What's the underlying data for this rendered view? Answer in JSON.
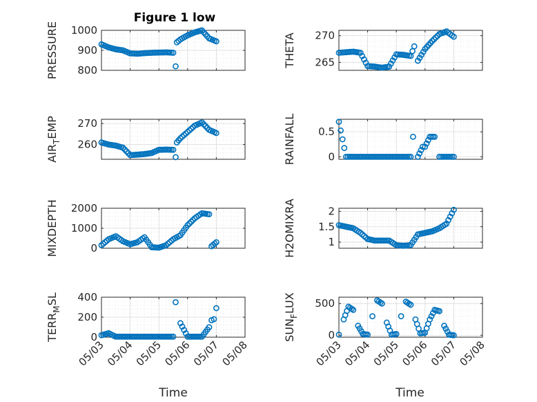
{
  "figure": {
    "title": "Figure 1 low",
    "xlabel": "Time"
  },
  "chart_data": [
    {
      "type": "scatter",
      "title": "Figure 1 low",
      "ylabel": "PRESSURE",
      "xlim": [
        "05/03",
        "05/08"
      ],
      "ylim": [
        800,
        1000
      ],
      "yticks": [
        800,
        900,
        1000
      ],
      "xticks": [],
      "x": [
        "05/03",
        "05/03 06:00",
        "05/03 12:00",
        "05/03 18:00",
        "05/04",
        "05/04 06:00",
        "05/04 12:00",
        "05/04 18:00",
        "05/05",
        "05/05 06:00",
        "05/05 12:00",
        "05/05 14:00",
        "05/05 15:00",
        "05/05 18:00",
        "05/06",
        "05/06 06:00",
        "05/06 12:00",
        "05/06 18:00",
        "05/07"
      ],
      "y": [
        930,
        915,
        905,
        900,
        885,
        883,
        886,
        888,
        889,
        890,
        888,
        820,
        940,
        955,
        975,
        990,
        1000,
        960,
        945
      ],
      "grid": true,
      "minor_grid": true
    },
    {
      "type": "scatter",
      "title": "",
      "ylabel": "THETA",
      "xlim": [
        "05/03",
        "05/08"
      ],
      "ylim": [
        263.5,
        271
      ],
      "yticks": [
        265,
        270
      ],
      "xticks": [],
      "x": [
        "05/03",
        "05/03 06:00",
        "05/03 12:00",
        "05/03 18:00",
        "05/04",
        "05/04 06:00",
        "05/04 12:00",
        "05/04 18:00",
        "05/05",
        "05/05 06:00",
        "05/05 12:00",
        "05/05 15:00",
        "05/05 18:00",
        "05/06",
        "05/06 06:00",
        "05/06 12:00",
        "05/06 18:00",
        "05/07"
      ],
      "y": [
        266.8,
        266.9,
        267.0,
        266.8,
        264.3,
        264.2,
        264.0,
        264.2,
        266.5,
        266.4,
        266.2,
        268.0,
        265.3,
        267.5,
        269.0,
        270.3,
        270.8,
        269.8
      ],
      "grid": true,
      "minor_grid": true
    },
    {
      "type": "scatter",
      "title": "",
      "ylabel": "AIR_TEMP",
      "ylabel_main": "AIR",
      "ylabel_sub": "T",
      "ylabel_rest": "EMP",
      "xlim": [
        "05/03",
        "05/08"
      ],
      "ylim": [
        253,
        272
      ],
      "yticks": [
        260,
        270
      ],
      "xticks": [],
      "x": [
        "05/03",
        "05/03 06:00",
        "05/03 12:00",
        "05/03 18:00",
        "05/04",
        "05/04 06:00",
        "05/04 12:00",
        "05/04 18:00",
        "05/05",
        "05/05 06:00",
        "05/05 12:00",
        "05/05 14:00",
        "05/05 15:00",
        "05/05 18:00",
        "05/06",
        "05/06 06:00",
        "05/06 12:00",
        "05/06 18:00",
        "05/07"
      ],
      "y": [
        261,
        260,
        259.5,
        258.5,
        255,
        255.2,
        255.5,
        256,
        257.5,
        257.6,
        257.5,
        254,
        261,
        263,
        266,
        269,
        270.5,
        267,
        265.5
      ],
      "grid": true,
      "minor_grid": true
    },
    {
      "type": "scatter",
      "title": "",
      "ylabel": "RAINFALL",
      "xlim": [
        "05/03",
        "05/08"
      ],
      "ylim": [
        -0.05,
        0.75
      ],
      "yticks": [
        0,
        0.5
      ],
      "xticks": [],
      "x": [
        "05/03",
        "05/03 06:00",
        "05/03 12:00",
        "05/04",
        "05/04 12:00",
        "05/05",
        "05/05 12:00",
        "05/05 14:00",
        "05/05 18:00",
        "05/05 22:00",
        "05/06",
        "05/06 04:00",
        "05/06 08:00",
        "05/06 12:00",
        "05/06 18:00",
        "05/07"
      ],
      "y": [
        0.7,
        0,
        0,
        0,
        0,
        0,
        0,
        0.4,
        0,
        0.2,
        0.2,
        0.4,
        0.4,
        0,
        0,
        0
      ],
      "grid": true,
      "minor_grid": true
    },
    {
      "type": "scatter",
      "title": "",
      "ylabel": "MIXDEPTH",
      "xlim": [
        "05/03",
        "05/08"
      ],
      "ylim": [
        0,
        2000
      ],
      "yticks": [
        0,
        1000,
        2000
      ],
      "xticks": [],
      "x": [
        "05/03",
        "05/03 06:00",
        "05/03 12:00",
        "05/03 18:00",
        "05/04",
        "05/04 06:00",
        "05/04 12:00",
        "05/04 18:00",
        "05/05",
        "05/05 06:00",
        "05/05 12:00",
        "05/05 18:00",
        "05/06",
        "05/06 06:00",
        "05/06 12:00",
        "05/06 18:00",
        "05/06 20:00",
        "05/07"
      ],
      "y": [
        150,
        450,
        600,
        350,
        200,
        300,
        550,
        50,
        30,
        150,
        450,
        650,
        1150,
        1500,
        1750,
        1700,
        100,
        300
      ],
      "grid": true,
      "minor_grid": true
    },
    {
      "type": "scatter",
      "title": "",
      "ylabel": "H2OMIXRA",
      "xlim": [
        "05/03",
        "05/08"
      ],
      "ylim": [
        0.8,
        2.1
      ],
      "yticks": [
        1,
        1.5,
        2
      ],
      "xticks": [],
      "x": [
        "05/03",
        "05/03 06:00",
        "05/03 12:00",
        "05/03 18:00",
        "05/04",
        "05/04 06:00",
        "05/04 12:00",
        "05/04 18:00",
        "05/05",
        "05/05 06:00",
        "05/05 12:00",
        "05/05 18:00",
        "05/06",
        "05/06 06:00",
        "05/06 12:00",
        "05/06 18:00",
        "05/07"
      ],
      "y": [
        1.55,
        1.5,
        1.45,
        1.3,
        1.1,
        1.05,
        1.05,
        1.05,
        0.9,
        0.88,
        0.9,
        1.25,
        1.3,
        1.35,
        1.45,
        1.6,
        2.05
      ],
      "grid": true,
      "minor_grid": true
    },
    {
      "type": "scatter",
      "title": "",
      "ylabel": "TERR_MSL",
      "ylabel_main": "TERR",
      "ylabel_sub": "M",
      "ylabel_rest": "SL",
      "xlim": [
        "05/03",
        "05/08"
      ],
      "ylim": [
        0,
        400
      ],
      "yticks": [
        0,
        200,
        400
      ],
      "xticks": [
        "05/03",
        "05/04",
        "05/05",
        "05/06",
        "05/07",
        "05/08"
      ],
      "x": [
        "05/03",
        "05/03 06:00",
        "05/03 12:00",
        "05/04",
        "05/04 12:00",
        "05/05",
        "05/05 12:00",
        "05/05 14:00",
        "05/05 18:00",
        "05/06",
        "05/06 12:00",
        "05/06 18:00",
        "05/06 20:00",
        "05/06 22:00",
        "05/07"
      ],
      "y": [
        20,
        40,
        5,
        5,
        5,
        5,
        5,
        350,
        140,
        5,
        5,
        100,
        170,
        180,
        290
      ],
      "grid": true,
      "minor_grid": true
    },
    {
      "type": "scatter",
      "title": "",
      "ylabel": "SUN_FLUX",
      "ylabel_main": "SUN",
      "ylabel_sub": "F",
      "ylabel_rest": "LUX",
      "xlim": [
        "05/03",
        "05/08"
      ],
      "ylim": [
        -30,
        600
      ],
      "yticks": [
        0,
        500
      ],
      "xticks": [
        "05/03",
        "05/04",
        "05/05",
        "05/06",
        "05/07",
        "05/08"
      ],
      "x": [
        "05/03",
        "05/03 04:00",
        "05/03 08:00",
        "05/03 12:00",
        "05/03 16:00",
        "05/03 20:00",
        "05/04",
        "05/04 04:00",
        "05/04 08:00",
        "05/04 12:00",
        "05/04 16:00",
        "05/04 20:00",
        "05/05",
        "05/05 04:00",
        "05/05 08:00",
        "05/05 12:00",
        "05/05 16:00",
        "05/05 20:00",
        "05/06",
        "05/06 04:00",
        "05/06 08:00",
        "05/06 12:00",
        "05/06 16:00",
        "05/06 20:00",
        "05/07"
      ],
      "y": [
        10,
        250,
        450,
        400,
        150,
        20,
        10,
        300,
        550,
        500,
        200,
        10,
        20,
        300,
        530,
        480,
        250,
        30,
        40,
        250,
        400,
        380,
        150,
        10,
        0
      ],
      "grid": true,
      "minor_grid": true
    }
  ]
}
